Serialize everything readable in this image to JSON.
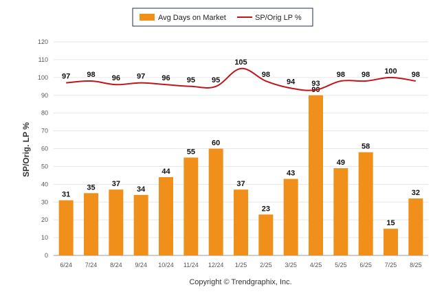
{
  "chart_data": {
    "type": "bar",
    "categories": [
      "6/24",
      "7/24",
      "8/24",
      "9/24",
      "10/24",
      "11/24",
      "12/24",
      "1/25",
      "2/25",
      "3/25",
      "4/25",
      "5/25",
      "6/25",
      "7/25",
      "8/25"
    ],
    "series": [
      {
        "name": "Avg Days on Market",
        "type": "bar",
        "color": "#f0901a",
        "values": [
          31,
          35,
          37,
          34,
          44,
          55,
          60,
          37,
          23,
          43,
          90,
          49,
          58,
          15,
          32
        ]
      },
      {
        "name": "SP/Orig LP %",
        "type": "line",
        "color": "#c0141c",
        "values": [
          97,
          98,
          96,
          97,
          96,
          95,
          95,
          105,
          98,
          94,
          93,
          98,
          98,
          100,
          98
        ]
      }
    ],
    "ylabel": "SP/Orig. LP %",
    "ylim": [
      0,
      120
    ],
    "yticks": [
      0,
      10,
      20,
      30,
      40,
      50,
      60,
      70,
      80,
      90,
      100,
      110,
      120
    ],
    "grid": true,
    "legend_position": "top-center"
  },
  "copyright": "Copyright © Trendgraphix, Inc."
}
